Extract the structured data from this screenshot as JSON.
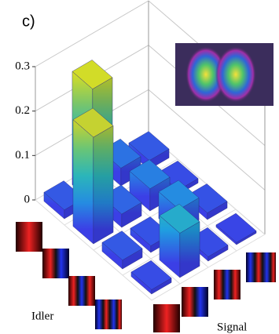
{
  "chart_data": {
    "type": "bar3d",
    "label": "c)",
    "x_label": "Idler",
    "y_label": "Signal",
    "values": [
      [
        0.02,
        0.255,
        0.04,
        0.02
      ],
      [
        0.24,
        0.03,
        0.05,
        0.01
      ],
      [
        0.02,
        0.015,
        0.06,
        0.015
      ],
      [
        0.01,
        0.1,
        0.01,
        0.005
      ]
    ],
    "zlim": [
      0,
      0.3
    ],
    "zticks": [
      0,
      0.1,
      0.2,
      0.3
    ],
    "grid": true,
    "colormap": [
      "#3b3fe6",
      "#1f9fe0",
      "#33c3a0",
      "#b8c83a",
      "#f9fb0e"
    ]
  }
}
